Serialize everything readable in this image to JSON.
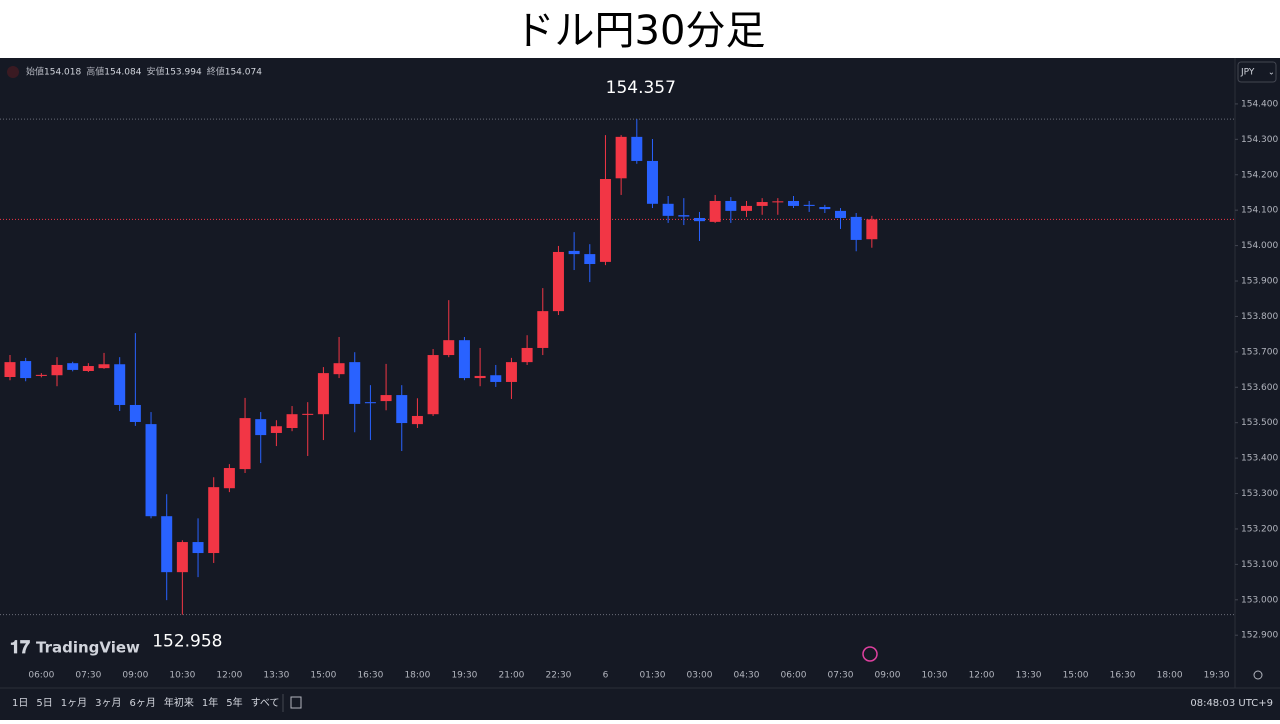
{
  "header": {
    "title": "ドル円30分足"
  },
  "legend": [
    {
      "label": "始値",
      "value": 154.018
    },
    {
      "label": "高値",
      "value": 154.084
    },
    {
      "label": "安値",
      "value": 153.994
    },
    {
      "label": "終値",
      "value": 154.074
    }
  ],
  "currency": "JPY",
  "logo": "TradingView",
  "toolbar": {
    "ranges": [
      "1日",
      "5日",
      "1ヶ月",
      "3ヶ月",
      "6ヶ月",
      "年初来",
      "1年",
      "5年",
      "すべて"
    ],
    "clock": "08:48:03 UTC+9"
  },
  "chart_data": {
    "type": "candlestick",
    "up_color": "#f23645",
    "down_color": "#2962ff",
    "high_marker": 154.357,
    "low_marker": 152.958,
    "ylim": [
      152.83,
      154.524
    ],
    "yticks": [
      {
        "value": 152.9,
        "label": "152.900"
      },
      {
        "value": 153.0,
        "label": "153.000"
      },
      {
        "value": 153.1,
        "label": "153.100"
      },
      {
        "value": 153.2,
        "label": "153.200"
      },
      {
        "value": 153.3,
        "label": "153.300"
      },
      {
        "value": 153.4,
        "label": "153.400"
      },
      {
        "value": 153.5,
        "label": "153.500"
      },
      {
        "value": 153.6,
        "label": "153.600"
      },
      {
        "value": 153.7,
        "label": "153.700"
      },
      {
        "value": 153.8,
        "label": "153.800"
      },
      {
        "value": 153.9,
        "label": "153.900"
      },
      {
        "value": 154.0,
        "label": "154.000"
      },
      {
        "value": 154.1,
        "label": "154.100"
      },
      {
        "value": 154.2,
        "label": "154.200"
      },
      {
        "value": 154.3,
        "label": "154.300"
      },
      {
        "value": 154.4,
        "label": "154.400"
      }
    ],
    "categories": [
      null,
      null,
      "06:00",
      null,
      null,
      "07:30",
      null,
      null,
      "09:00",
      null,
      null,
      "10:30",
      null,
      null,
      "12:00",
      null,
      null,
      "13:30",
      null,
      null,
      "15:00",
      null,
      null,
      "16:30",
      null,
      null,
      "18:00",
      null,
      null,
      "19:30",
      null,
      null,
      "21:00",
      null,
      null,
      "22:30",
      null,
      null,
      "6",
      null,
      null,
      "01:30",
      null,
      null,
      "03:00",
      null,
      null,
      "04:30",
      null,
      null,
      "06:00",
      null,
      null,
      "07:30",
      null,
      null,
      "09:00",
      null,
      null,
      "10:30",
      null,
      null,
      "12:00",
      null,
      null,
      "13:30",
      null,
      null,
      "15:00",
      null,
      null,
      "16:30",
      null,
      null,
      "18:00",
      null,
      null,
      "19:30"
    ],
    "open": [
      153.629,
      153.674,
      153.632,
      153.634,
      153.668,
      153.646,
      153.654,
      153.665,
      153.55,
      153.496,
      153.236,
      153.078,
      153.163,
      153.132,
      153.315,
      153.369,
      153.51,
      153.471,
      153.485,
      153.522,
      153.524,
      153.637,
      153.671,
      153.558,
      153.561,
      153.578,
      153.496,
      153.524,
      153.691,
      153.733,
      153.626,
      153.634,
      153.615,
      153.671,
      153.711,
      153.815,
      153.985,
      153.976,
      153.954,
      154.19,
      154.307,
      154.239,
      154.118,
      154.086,
      154.078,
      154.067,
      154.126,
      154.098,
      154.112,
      154.122,
      154.126,
      154.115,
      154.109,
      154.098,
      154.081,
      154.018,
      null,
      null,
      null,
      null,
      null,
      null,
      null,
      null,
      null,
      null,
      null,
      null,
      null,
      null,
      null,
      null,
      null,
      null,
      null,
      null,
      null,
      null
    ],
    "high": [
      153.691,
      153.683,
      153.64,
      153.685,
      153.672,
      153.668,
      153.697,
      153.685,
      153.753,
      153.53,
      153.298,
      153.168,
      153.23,
      153.346,
      153.383,
      153.57,
      153.53,
      153.507,
      153.547,
      153.558,
      153.657,
      153.742,
      153.699,
      153.606,
      153.666,
      153.606,
      153.569,
      153.708,
      153.846,
      153.742,
      153.711,
      153.663,
      153.683,
      153.747,
      153.88,
      153.999,
      154.038,
      154.004,
      154.312,
      154.312,
      154.357,
      154.301,
      154.14,
      154.134,
      154.095,
      154.143,
      154.137,
      154.126,
      154.134,
      154.134,
      154.14,
      154.126,
      154.115,
      154.106,
      154.092,
      154.084,
      null,
      null,
      null,
      null,
      null,
      null,
      null,
      null,
      null,
      null,
      null,
      null,
      null,
      null,
      null,
      null,
      null,
      null,
      null,
      null,
      null,
      null
    ],
    "low": [
      153.62,
      153.617,
      153.628,
      153.603,
      153.645,
      153.643,
      153.652,
      153.533,
      153.491,
      153.23,
      152.999,
      152.958,
      153.064,
      153.104,
      153.304,
      153.358,
      153.386,
      153.434,
      153.476,
      153.406,
      153.451,
      153.626,
      153.473,
      153.451,
      153.535,
      153.42,
      153.485,
      153.519,
      153.685,
      153.62,
      153.603,
      153.601,
      153.567,
      153.663,
      153.691,
      153.804,
      153.931,
      153.897,
      153.945,
      154.143,
      154.231,
      154.106,
      154.064,
      154.058,
      154.013,
      154.064,
      154.064,
      154.081,
      154.087,
      154.087,
      154.106,
      154.095,
      154.092,
      154.047,
      153.984,
      153.994,
      null,
      null,
      null,
      null,
      null,
      null,
      null,
      null,
      null,
      null,
      null,
      null,
      null,
      null,
      null,
      null,
      null,
      null,
      null,
      null,
      null,
      null
    ],
    "close": [
      153.671,
      153.626,
      153.635,
      153.663,
      153.649,
      153.66,
      153.665,
      153.55,
      153.502,
      153.236,
      153.078,
      153.163,
      153.132,
      153.318,
      153.372,
      153.513,
      153.465,
      153.49,
      153.524,
      153.525,
      153.64,
      153.668,
      153.553,
      153.555,
      153.578,
      153.499,
      153.519,
      153.691,
      153.733,
      153.626,
      153.632,
      153.615,
      153.671,
      153.711,
      153.815,
      153.982,
      153.976,
      153.948,
      154.188,
      154.307,
      154.239,
      154.118,
      154.084,
      154.082,
      154.069,
      154.126,
      154.098,
      154.112,
      154.123,
      154.125,
      154.112,
      154.112,
      154.103,
      154.078,
      154.016,
      154.074,
      null,
      null,
      null,
      null,
      null,
      null,
      null,
      null,
      null,
      null,
      null,
      null,
      null,
      null,
      null,
      null,
      null,
      null,
      null,
      null,
      null,
      null
    ]
  }
}
